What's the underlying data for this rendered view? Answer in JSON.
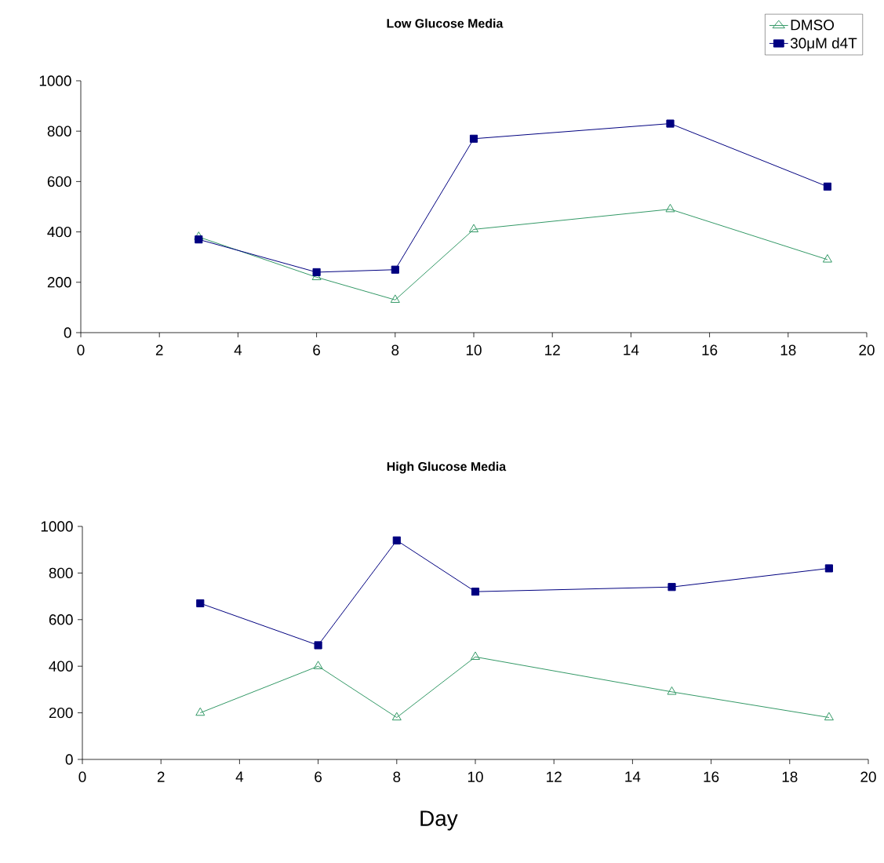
{
  "chart_data": [
    {
      "type": "line",
      "title": "Low Glucose Media",
      "x": [
        3,
        6,
        8,
        10,
        15,
        19
      ],
      "xlim": [
        0,
        20
      ],
      "xticks": [
        0,
        2,
        4,
        6,
        8,
        10,
        12,
        14,
        16,
        18,
        20
      ],
      "ylim": [
        0,
        1000
      ],
      "yticks": [
        0,
        200,
        400,
        600,
        800,
        1000
      ],
      "legend": "top right",
      "series": [
        {
          "name": "DMSO",
          "color": "#339966",
          "marker": "triangle",
          "values": [
            380,
            220,
            130,
            410,
            490,
            290
          ]
        },
        {
          "name": "30μM d4T",
          "color": "#000080",
          "marker": "square",
          "values": [
            370,
            240,
            250,
            770,
            830,
            580
          ]
        }
      ]
    },
    {
      "type": "line",
      "title": "High Glucose Media",
      "xlabel": "Day",
      "x": [
        3,
        6,
        8,
        10,
        15,
        19
      ],
      "xlim": [
        0,
        20
      ],
      "xticks": [
        0,
        2,
        4,
        6,
        8,
        10,
        12,
        14,
        16,
        18,
        20
      ],
      "ylim": [
        0,
        1000
      ],
      "yticks": [
        0,
        200,
        400,
        600,
        800,
        1000
      ],
      "series": [
        {
          "color": "#339966",
          "marker": "triangle",
          "values": [
            200,
            400,
            180,
            440,
            290,
            180
          ]
        },
        {
          "color": "#000080",
          "marker": "square",
          "values": [
            670,
            490,
            940,
            720,
            740,
            820
          ]
        }
      ]
    }
  ]
}
